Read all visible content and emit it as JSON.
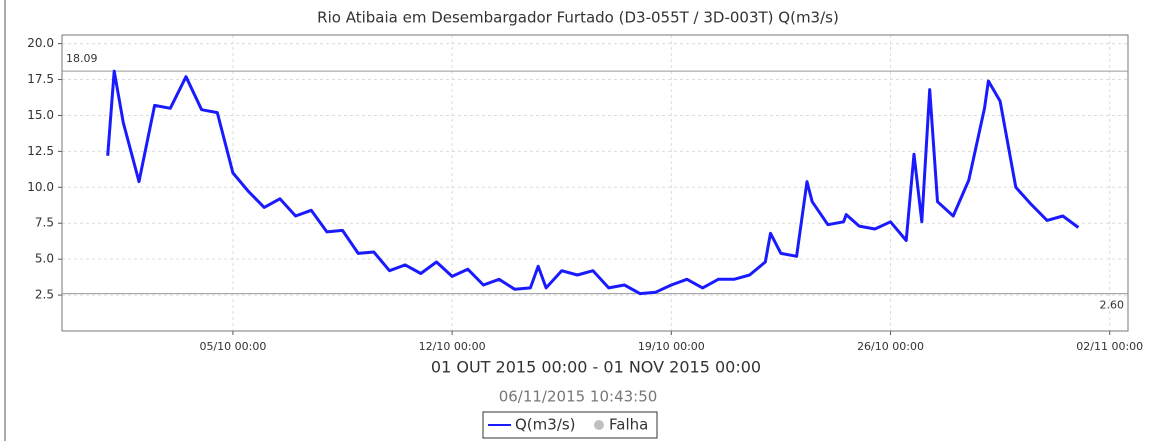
{
  "chart_data": {
    "type": "line",
    "title": "Rio Atibaia em Desembargador Furtado (D3-055T / 3D-003T) Q(m3/s)",
    "range_label": "01 OUT 2015 00:00 - 01 NOV 2015 00:00",
    "timestamp": "06/11/2015 10:43:50",
    "x": [
      "01/10 00:00",
      "01/10 05:00",
      "01/10 12:00",
      "02/10 00:00",
      "02/10 12:00",
      "03/10 00:00",
      "03/10 12:00",
      "04/10 00:00",
      "04/10 12:00",
      "05/10 00:00",
      "05/10 12:00",
      "06/10 00:00",
      "06/10 12:00",
      "07/10 00:00",
      "07/10 12:00",
      "08/10 00:00",
      "08/10 12:00",
      "09/10 00:00",
      "09/10 12:00",
      "10/10 00:00",
      "10/10 12:00",
      "11/10 00:00",
      "11/10 12:00",
      "12/10 00:00",
      "12/10 12:00",
      "13/10 00:00",
      "13/10 12:00",
      "14/10 00:00",
      "14/10 12:00",
      "14/10 18:00",
      "15/10 00:00",
      "15/10 12:00",
      "16/10 00:00",
      "16/10 12:00",
      "17/10 00:00",
      "17/10 12:00",
      "18/10 00:00",
      "18/10 12:00",
      "19/10 00:00",
      "19/10 12:00",
      "20/10 00:00",
      "20/10 12:00",
      "21/10 00:00",
      "21/10 12:00",
      "22/10 00:00",
      "22/10 04:00",
      "22/10 12:00",
      "23/10 00:00",
      "23/10 08:00",
      "23/10 12:00",
      "24/10 00:00",
      "24/10 12:00",
      "24/10 14:00",
      "25/10 00:00",
      "25/10 12:00",
      "26/10 00:00",
      "26/10 12:00",
      "26/10 18:00",
      "27/10 00:00",
      "27/10 06:00",
      "27/10 12:00",
      "28/10 00:00",
      "28/10 12:00",
      "29/10 00:00",
      "29/10 03:00",
      "29/10 12:00",
      "30/10 00:00",
      "30/10 12:00",
      "31/10 00:00",
      "31/10 12:00",
      "01/11 00:00"
    ],
    "series": [
      {
        "name": "Q(m3/s)",
        "color": "#1a1aff",
        "values": [
          12.2,
          18.09,
          14.5,
          10.4,
          15.7,
          15.5,
          17.7,
          15.4,
          15.2,
          11.0,
          9.7,
          8.6,
          9.2,
          8.0,
          8.4,
          6.9,
          7.0,
          5.4,
          5.5,
          4.2,
          4.6,
          4.0,
          4.8,
          3.8,
          4.3,
          3.2,
          3.6,
          2.9,
          3.0,
          4.5,
          3.0,
          4.2,
          3.9,
          4.2,
          3.0,
          3.2,
          2.6,
          2.7,
          3.2,
          3.6,
          3.0,
          3.6,
          3.6,
          3.9,
          4.8,
          6.8,
          5.4,
          5.2,
          10.4,
          9.0,
          7.4,
          7.6,
          8.1,
          7.3,
          7.1,
          7.6,
          6.3,
          12.3,
          7.6,
          16.8,
          9.0,
          8.0,
          10.5,
          15.5,
          17.4,
          16.0,
          10.0,
          8.8,
          7.7,
          8.0,
          7.2
        ]
      }
    ],
    "legend_extra": {
      "name": "Falha",
      "color": "#c0c0c0"
    },
    "max_line": 18.09,
    "min_line": {
      "value": 2.6,
      "label": "2.60"
    },
    "xlim": [
      "29/09 13:00",
      "02/11 14:00"
    ],
    "xticks": [
      "05/10 00:00",
      "12/10 00:00",
      "19/10 00:00",
      "26/10 00:00",
      "02/11 00:00"
    ],
    "ylim": [
      0,
      20.6
    ],
    "yticks": [
      2.5,
      {
        "value": 5,
        "label": "5.0"
      },
      7.5,
      {
        "value": 10,
        "label": "10.0"
      },
      12.5,
      {
        "value": 15,
        "label": "15.0"
      },
      17.5,
      {
        "value": 20,
        "label": "20.0"
      }
    ],
    "grid": true
  }
}
